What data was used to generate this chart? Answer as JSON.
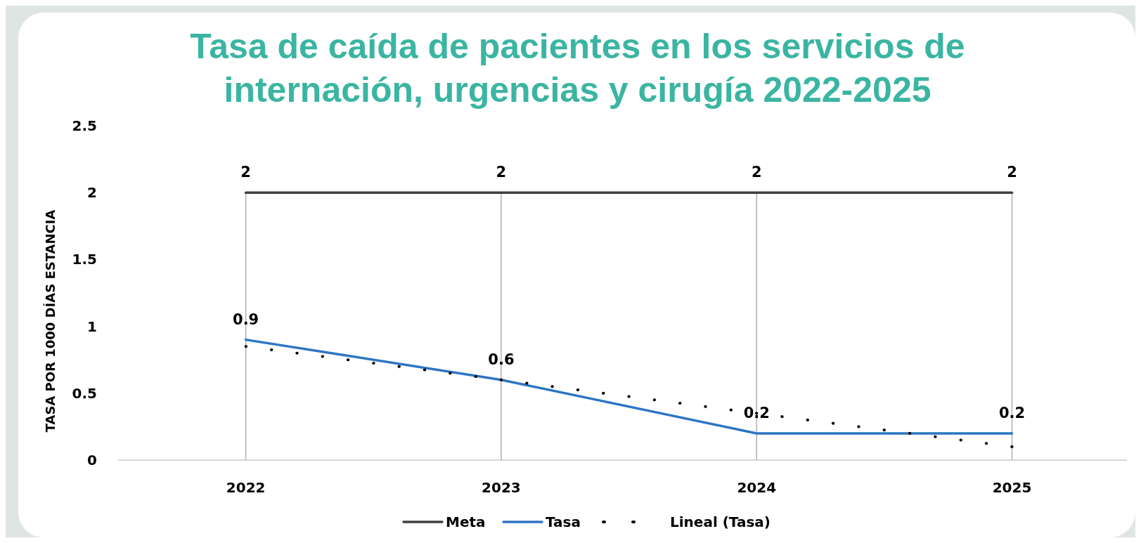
{
  "chart_data": {
    "type": "line",
    "title": "Tasa de caída de pacientes en los servicios de internación, urgencias y cirugía 2022-2025",
    "ylabel": "TASA POR 1000 DÍAS ESTANCIA",
    "x": [
      2022,
      2023,
      2024,
      2025
    ],
    "xlim": [
      2021.5,
      2025.45
    ],
    "xticks": [
      2022,
      2023,
      2024,
      2025
    ],
    "ylim": [
      0,
      2.5
    ],
    "yticks": [
      0,
      0.5,
      1,
      1.5,
      2,
      2.5
    ],
    "grid": "x",
    "legend": "bottom",
    "marker": "none",
    "series": [
      {
        "name": "Meta",
        "color": "#404040",
        "values": [
          2,
          2,
          2,
          2
        ],
        "value_labels": [
          "2",
          "2",
          "2",
          "2"
        ]
      },
      {
        "name": "Tasa",
        "color": "#2e75c4",
        "values": [
          0.9,
          0.6,
          0.2,
          0.2
        ],
        "value_labels": [
          "0.9",
          "0.6",
          "0.2",
          "0.2"
        ]
      },
      {
        "name": "Lineal (Tasa)",
        "type": "line",
        "color": "#000000",
        "line_style": "dotted",
        "x": [
          2022,
          2025
        ],
        "values": [
          0.85,
          0.1
        ]
      }
    ]
  }
}
